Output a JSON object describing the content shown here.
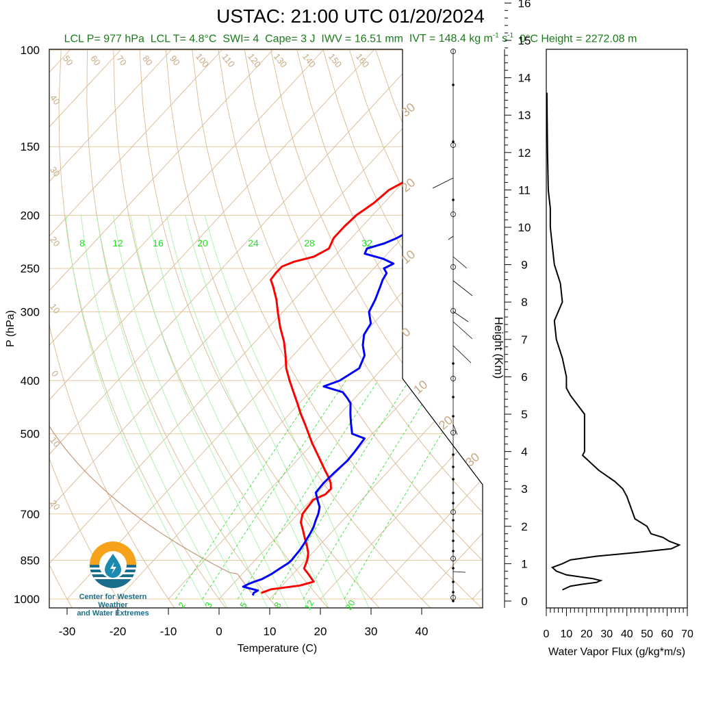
{
  "title": "USTAC: 21:00 UTC 01/20/2024",
  "stats": {
    "lcl_p": "LCL P= 977 hPa",
    "lcl_t": "LCL T= 4.8°C",
    "swi": "SWI= 4",
    "cape": "Cape= 3 J",
    "iwv": "IWV = 16.51 mm",
    "ivt_prefix": "IVT = 148.4 kg m",
    "ivt_exp1": "-1",
    "ivt_mid": " s",
    "ivt_exp2": "-1",
    "zero_height": "0°C Height = 2272.08 m"
  },
  "logo": {
    "line1": "Center for Western Weather",
    "line2": "and Water Extremes"
  },
  "colors": {
    "temperature": "#ff0000",
    "dewpoint": "#0000ff",
    "mixing_ratio": "#22dd22",
    "adiabat": "#d2b48c",
    "stats_text": "#1a7a1a"
  },
  "chart_data": [
    {
      "type": "line",
      "subtype": "skew-t",
      "xlabel": "Temperature (C)",
      "ylabel": "P (hPa)",
      "y2label": "Height (Km)",
      "x_ticks": [
        "-30",
        "-20",
        "-10",
        "0",
        "10",
        "20",
        "30",
        "40"
      ],
      "y_ticks": [
        "100",
        "150",
        "200",
        "250",
        "300",
        "400",
        "500",
        "700",
        "850",
        "1000"
      ],
      "y2_ticks": [
        "0",
        "1",
        "2",
        "3",
        "4",
        "5",
        "6",
        "7",
        "8",
        "9",
        "10",
        "11",
        "12",
        "13",
        "14",
        "15",
        "16"
      ],
      "mixing_ratio_labels_top": [
        "8",
        "12",
        "16",
        "20",
        "24",
        "28",
        "32"
      ],
      "mixing_ratio_labels_bottom": [
        "2",
        "3",
        "5",
        "8",
        "12",
        "20"
      ],
      "theta_labels": [
        "50",
        "60",
        "70",
        "80",
        "90",
        "100",
        "110",
        "120",
        "130",
        "140",
        "150",
        "160"
      ],
      "isotherm_labels_left": [
        "40",
        "30",
        "20",
        "10",
        "0",
        "10",
        "20"
      ],
      "isotherm_labels_right": [
        "30",
        "20",
        "10",
        "0",
        "10",
        "20",
        "30"
      ],
      "series": [
        {
          "color": "red",
          "p": [
            975,
            960,
            945,
            930,
            900,
            880,
            860,
            850,
            825,
            800,
            775,
            750,
            725,
            700,
            675,
            660,
            645,
            630,
            615,
            600,
            580,
            560,
            540,
            520,
            500,
            480,
            460,
            440,
            420,
            400,
            380,
            360,
            340,
            320,
            300,
            285,
            270,
            262,
            255,
            248,
            243,
            238,
            230,
            220,
            210,
            200,
            190,
            180,
            170,
            160,
            150
          ],
          "t": [
            7.2,
            8.5,
            13.5,
            15.5,
            13.0,
            11.2,
            10.6,
            10.3,
            9.2,
            7.6,
            5.8,
            4.0,
            2.1,
            0.9,
            0.6,
            0.4,
            1.8,
            1.9,
            0.8,
            -0.7,
            -3.0,
            -5.3,
            -7.7,
            -10.2,
            -12.6,
            -15.1,
            -17.8,
            -20.4,
            -23.2,
            -26.1,
            -29.0,
            -31.5,
            -34.3,
            -37.7,
            -41.0,
            -43.5,
            -46.5,
            -48.3,
            -48.5,
            -48.5,
            -47.0,
            -44.0,
            -42.5,
            -43.5,
            -43.5,
            -43.2,
            -42.0,
            -41.4,
            -38.9,
            -37.5,
            -36.0
          ]
        },
        {
          "color": "blue",
          "p": [
            985,
            975,
            965,
            950,
            940,
            930,
            920,
            900,
            880,
            860,
            850,
            835,
            815,
            790,
            760,
            740,
            720,
            700,
            680,
            660,
            640,
            615,
            590,
            560,
            540,
            510,
            500,
            480,
            460,
            440,
            430,
            420,
            410,
            400,
            380,
            360,
            345,
            330,
            315,
            300,
            285,
            270,
            262,
            255,
            250,
            245,
            240,
            235,
            230,
            225,
            220,
            215,
            205,
            195,
            185,
            175,
            165,
            155,
            150
          ],
          "t": [
            6.0,
            5.7,
            6.1,
            2.5,
            3.0,
            3.8,
            4.8,
            5.8,
            6.4,
            7.1,
            7.2,
            7.1,
            7.0,
            6.6,
            6.0,
            5.5,
            4.7,
            4.0,
            3.0,
            1.3,
            -0.4,
            -0.6,
            -0.4,
            0.0,
            -0.2,
            -0.7,
            -4.0,
            -6.0,
            -8.0,
            -9.9,
            -11.6,
            -13.5,
            -18.3,
            -16.2,
            -14.6,
            -15.9,
            -18.1,
            -19.8,
            -20.5,
            -23.0,
            -24.0,
            -25.4,
            -26.2,
            -26.6,
            -28.0,
            -27.0,
            -30.0,
            -34.5,
            -35.0,
            -32.5,
            -31.0,
            -30.0,
            -29.0,
            -28.0,
            -27.0,
            -26.5,
            -24.5,
            -23.5,
            -22.5
          ]
        }
      ]
    },
    {
      "type": "line",
      "xlabel": "Water Vapor Flux (g/kg*m/s)",
      "x_ticks": [
        "0",
        "10",
        "20",
        "30",
        "40",
        "50",
        "60",
        "70"
      ],
      "xlim": [
        0,
        70
      ],
      "ylim": [
        -0.2,
        16.5
      ],
      "series": [
        {
          "color": "black",
          "h": [
            0.3,
            0.4,
            0.45,
            0.5,
            0.55,
            0.6,
            0.7,
            0.8,
            0.9,
            1.0,
            1.1,
            1.2,
            1.3,
            1.4,
            1.5,
            1.6,
            1.7,
            1.8,
            2.0,
            2.2,
            2.5,
            2.8,
            3.0,
            3.2,
            3.5,
            3.8,
            3.9,
            4.0,
            4.5,
            5.0,
            5.5,
            5.7,
            6.0,
            6.5,
            7.0,
            7.5,
            8.0,
            8.5,
            9.0,
            9.5,
            10.0,
            10.5,
            11.0,
            12.0,
            13.0,
            13.6
          ],
          "v": [
            8,
            12,
            18,
            25,
            27,
            23,
            10,
            5,
            3,
            8,
            12,
            25,
            45,
            62,
            66,
            61,
            58,
            52,
            50,
            44,
            42,
            40,
            38,
            34,
            26,
            20,
            18,
            19,
            19,
            19,
            12,
            10,
            10,
            8,
            5,
            4,
            8,
            7,
            4,
            3,
            2,
            2,
            1,
            0.6,
            0.4,
            0.3
          ]
        }
      ]
    }
  ]
}
